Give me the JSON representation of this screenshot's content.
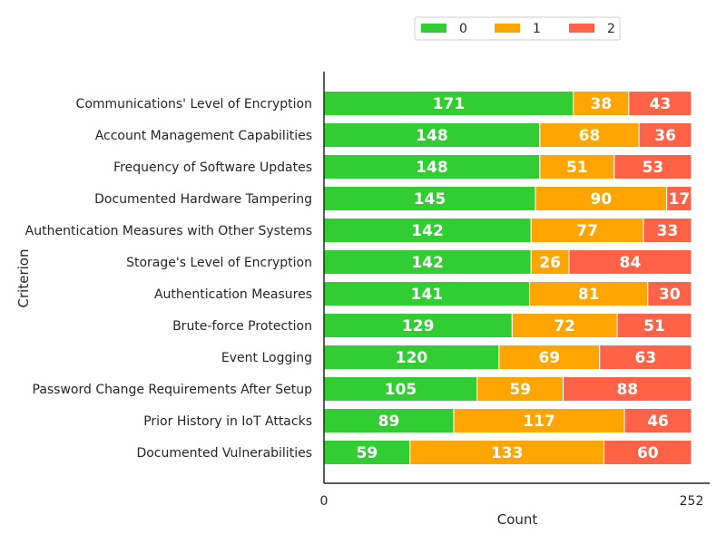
{
  "chart_data": {
    "type": "bar",
    "orientation": "horizontal",
    "stacked": true,
    "categories": [
      "Communications' Level of Encryption",
      "Account Management Capabilities",
      "Frequency of Software Updates",
      "Documented Hardware Tampering",
      "Authentication Measures with Other Systems",
      "Storage's Level of Encryption",
      "Authentication Measures",
      "Brute-force Protection",
      "Event Logging",
      "Password Change Requirements After Setup",
      "Prior History in IoT Attacks",
      "Documented Vulnerabilities"
    ],
    "series": [
      {
        "name": "0",
        "color": "#32cd32",
        "values": [
          171,
          148,
          148,
          145,
          142,
          142,
          141,
          129,
          120,
          105,
          89,
          59
        ]
      },
      {
        "name": "1",
        "color": "#ffa500",
        "values": [
          38,
          68,
          51,
          90,
          77,
          26,
          81,
          72,
          69,
          59,
          117,
          133
        ]
      },
      {
        "name": "2",
        "color": "#ff6347",
        "values": [
          43,
          36,
          53,
          17,
          33,
          84,
          30,
          51,
          63,
          88,
          46,
          60
        ]
      }
    ],
    "xlabel": "Count",
    "ylabel": "Criterion",
    "xlim": [
      0,
      252
    ],
    "xticks": [
      "0",
      "252"
    ],
    "grid": false,
    "legend_position": "top-center"
  }
}
